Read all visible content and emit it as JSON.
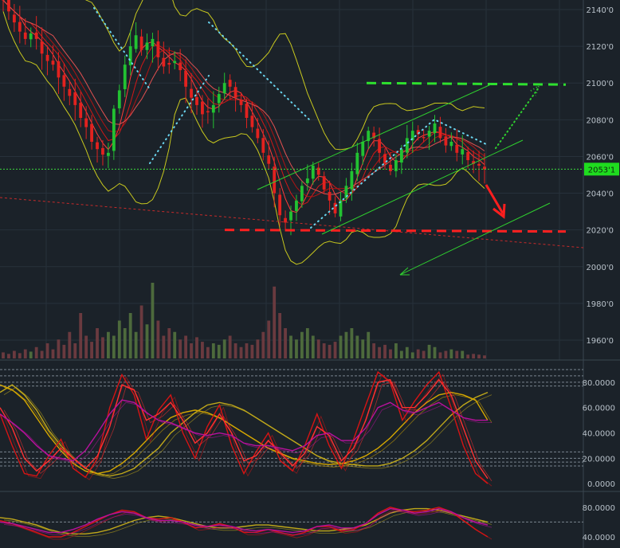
{
  "chart_data": [
    {
      "panel": "price",
      "type": "candlestick",
      "y_ticks": [
        "2140'0",
        "2120'0",
        "2100'0",
        "2080'0",
        "2060'0",
        "2040'0",
        "2020'0",
        "2000'0",
        "1980'0",
        "1960'0"
      ],
      "y_tick_values": [
        2140,
        2120,
        2100,
        2080,
        2060,
        2040,
        2020,
        2000,
        1980,
        1960
      ],
      "ylim": [
        1953,
        2144
      ],
      "current_price_label": "2053'1",
      "current_price": 2053.1,
      "close_path": [
        2145,
        2139,
        2133,
        2128,
        2124,
        2127,
        2124,
        2116,
        2112,
        2110,
        2103,
        2098,
        2093,
        2088,
        2081,
        2076,
        2068,
        2064,
        2061,
        2062,
        2086,
        2096,
        2110,
        2120,
        2126,
        2118,
        2122,
        2124,
        2114,
        2109,
        2110,
        2112,
        2107,
        2098,
        2092,
        2088,
        2083,
        2084,
        2088,
        2094,
        2100,
        2098,
        2092,
        2088,
        2081,
        2076,
        2070,
        2062,
        2056,
        2040,
        2028,
        2024,
        2030,
        2036,
        2044,
        2048,
        2055,
        2050,
        2042,
        2036,
        2029,
        2036,
        2044,
        2052,
        2062,
        2068,
        2074,
        2070,
        2062,
        2056,
        2052,
        2058,
        2064,
        2070,
        2074,
        2072,
        2070,
        2074,
        2078,
        2070,
        2066,
        2068,
        2062,
        2064,
        2058,
        2056,
        2055,
        2053
      ],
      "volume_relative": [
        0.08,
        0.06,
        0.1,
        0.07,
        0.12,
        0.09,
        0.15,
        0.1,
        0.2,
        0.12,
        0.25,
        0.18,
        0.35,
        0.2,
        0.6,
        0.3,
        0.22,
        0.4,
        0.28,
        0.35,
        0.3,
        0.5,
        0.4,
        0.6,
        0.35,
        0.7,
        0.45,
        1.0,
        0.5,
        0.3,
        0.4,
        0.35,
        0.25,
        0.3,
        0.2,
        0.28,
        0.22,
        0.15,
        0.2,
        0.18,
        0.25,
        0.3,
        0.2,
        0.15,
        0.2,
        0.18,
        0.25,
        0.35,
        0.5,
        0.95,
        0.6,
        0.4,
        0.3,
        0.25,
        0.35,
        0.4,
        0.3,
        0.25,
        0.2,
        0.18,
        0.22,
        0.3,
        0.35,
        0.4,
        0.3,
        0.25,
        0.35,
        0.2,
        0.15,
        0.18,
        0.12,
        0.2,
        0.1,
        0.15,
        0.08,
        0.12,
        0.1,
        0.18,
        0.15,
        0.08,
        0.1,
        0.12,
        0.1,
        0.1,
        0.05,
        0.06,
        0.05,
        0.04
      ],
      "annotations": {
        "resistance_dashed_line": 2100,
        "support_dashed_line": 2020,
        "horizontal_line_at_current": 2053.1
      }
    },
    {
      "panel": "oscillator_1",
      "type": "line",
      "y_ticks": [
        "80.0000",
        "60.0000",
        "40.0000",
        "20.0000",
        "0.0000"
      ],
      "y_tick_values": [
        80,
        60,
        40,
        20,
        0
      ],
      "ylim": [
        -3,
        95
      ],
      "series": [
        {
          "color": "#c0a81a",
          "values": [
            72,
            78,
            70,
            58,
            42,
            30,
            20,
            12,
            8,
            6,
            8,
            12,
            20,
            28,
            40,
            48,
            56,
            62,
            64,
            62,
            58,
            52,
            46,
            40,
            34,
            28,
            22,
            18,
            16,
            15,
            14,
            14,
            16,
            20,
            26,
            34,
            44,
            54,
            62,
            68,
            72
          ]
        },
        {
          "color": "#d6a800",
          "values": [
            78,
            74,
            66,
            52,
            38,
            26,
            16,
            10,
            8,
            10,
            16,
            24,
            34,
            44,
            52,
            56,
            58,
            56,
            52,
            46,
            40,
            34,
            28,
            24,
            20,
            18,
            16,
            15,
            16,
            18,
            22,
            28,
            36,
            46,
            56,
            64,
            70,
            72,
            70,
            66,
            50
          ]
        },
        {
          "color": "#d61414",
          "values": [
            55,
            30,
            8,
            6,
            22,
            35,
            12,
            5,
            20,
            60,
            86,
            70,
            35,
            58,
            70,
            40,
            20,
            45,
            62,
            30,
            8,
            25,
            40,
            18,
            10,
            30,
            55,
            30,
            12,
            35,
            62,
            88,
            80,
            50,
            65,
            78,
            88,
            60,
            30,
            8,
            0
          ]
        },
        {
          "color": "#ff3030",
          "values": [
            60,
            44,
            20,
            10,
            18,
            28,
            20,
            12,
            22,
            45,
            78,
            74,
            50,
            55,
            64,
            50,
            32,
            40,
            55,
            40,
            18,
            22,
            34,
            24,
            14,
            24,
            45,
            38,
            18,
            28,
            50,
            80,
            82,
            60,
            60,
            70,
            82,
            70,
            44,
            18,
            4
          ]
        },
        {
          "color": "#b8119d",
          "values": [
            55,
            48,
            40,
            30,
            22,
            20,
            18,
            26,
            40,
            55,
            66,
            64,
            56,
            50,
            48,
            44,
            40,
            38,
            40,
            38,
            32,
            30,
            30,
            28,
            26,
            30,
            38,
            40,
            34,
            34,
            44,
            60,
            64,
            58,
            56,
            60,
            64,
            58,
            52,
            50,
            50
          ]
        }
      ]
    },
    {
      "panel": "oscillator_2",
      "type": "line",
      "y_ticks": [
        "80.0000",
        "40.0000"
      ],
      "y_tick_values": [
        80,
        40
      ],
      "ylim": [
        25,
        98
      ],
      "series": [
        {
          "color": "#c0a81a",
          "values": [
            66,
            64,
            60,
            56,
            50,
            46,
            44,
            44,
            46,
            50,
            56,
            62,
            66,
            68,
            66,
            62,
            58,
            54,
            52,
            52,
            54,
            56,
            56,
            54,
            52,
            50,
            48,
            48,
            50,
            52,
            56,
            64,
            72,
            76,
            78,
            78,
            76,
            72,
            68,
            64,
            60
          ]
        },
        {
          "color": "#d61414",
          "values": [
            62,
            58,
            52,
            46,
            40,
            40,
            46,
            54,
            62,
            70,
            76,
            74,
            66,
            64,
            66,
            60,
            52,
            54,
            58,
            54,
            46,
            46,
            50,
            46,
            42,
            46,
            54,
            54,
            48,
            50,
            58,
            72,
            80,
            76,
            74,
            76,
            80,
            74,
            62,
            50,
            40
          ]
        },
        {
          "color": "#b8119d",
          "values": [
            60,
            58,
            54,
            50,
            46,
            46,
            50,
            56,
            64,
            70,
            74,
            72,
            66,
            62,
            62,
            60,
            56,
            54,
            56,
            54,
            50,
            48,
            50,
            48,
            46,
            48,
            54,
            56,
            52,
            52,
            58,
            70,
            78,
            76,
            72,
            74,
            78,
            74,
            66,
            60,
            56
          ]
        }
      ]
    }
  ],
  "colors": {
    "background": "#1b2229",
    "up_candle": "#22c232",
    "down_candle": "#e2221f",
    "trend_lines": "#2fd02f",
    "dotted_path": "#6ad6f0",
    "price_label_bg": "#1fdc1f"
  }
}
